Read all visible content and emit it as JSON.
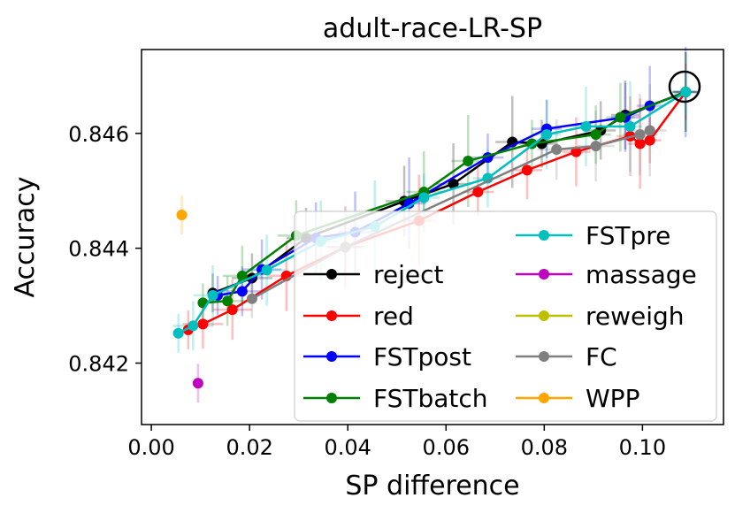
{
  "chart_data": {
    "type": "scatter",
    "title": "adult-race-LR-SP",
    "xlabel": "SP difference",
    "ylabel": "Accuracy",
    "xlim": [
      -0.002,
      0.1165
    ],
    "ylim": [
      0.84093,
      0.84746
    ],
    "xticks": [
      0.0,
      0.02,
      0.04,
      0.06,
      0.08,
      0.1
    ],
    "xtick_labels": [
      "0.00",
      "0.02",
      "0.04",
      "0.06",
      "0.08",
      "0.10"
    ],
    "yticks": [
      0.842,
      0.844,
      0.846
    ],
    "ytick_labels": [
      "0.842",
      "0.844",
      "0.846"
    ],
    "grid": false,
    "legend_position": "lower-right",
    "series": [
      {
        "name": "reject",
        "color": "#000000",
        "x": [
          0.0125,
          0.0205,
          0.0315,
          0.0515,
          0.0615,
          0.0735,
          0.0795,
          0.0915,
          0.0965,
          0.1088
        ],
        "y": [
          0.84322,
          0.84348,
          0.84418,
          0.84482,
          0.84512,
          0.84585,
          0.84582,
          0.84605,
          0.84632,
          0.84672
        ]
      },
      {
        "name": "red",
        "color": "#ff0000",
        "x": [
          0.0075,
          0.0105,
          0.0165,
          0.0275,
          0.0395,
          0.0545,
          0.0665,
          0.0765,
          0.0865,
          0.0975,
          0.0995,
          0.1015,
          0.1088
        ],
        "y": [
          0.84258,
          0.84268,
          0.84293,
          0.84352,
          0.84402,
          0.84448,
          0.84498,
          0.84536,
          0.84568,
          0.84595,
          0.84582,
          0.84588,
          0.84672
        ]
      },
      {
        "name": "FSTpost",
        "color": "#0000ff",
        "x": [
          0.0135,
          0.0185,
          0.0225,
          0.0335,
          0.0415,
          0.0525,
          0.0685,
          0.0805,
          0.0965,
          0.1015,
          0.1088
        ],
        "y": [
          0.84318,
          0.84325,
          0.84363,
          0.84418,
          0.84428,
          0.84478,
          0.84558,
          0.84608,
          0.84628,
          0.84648,
          0.84672
        ]
      },
      {
        "name": "FSTbatch",
        "color": "#008000",
        "x": [
          0.0105,
          0.0155,
          0.0185,
          0.0295,
          0.0555,
          0.0645,
          0.0775,
          0.0905,
          0.0955,
          0.1088
        ],
        "y": [
          0.84305,
          0.84308,
          0.84352,
          0.84422,
          0.84498,
          0.84552,
          0.84582,
          0.84598,
          0.84628,
          0.84672
        ]
      },
      {
        "name": "FSTpre",
        "color": "#00bfbf",
        "x": [
          0.0055,
          0.0085,
          0.0125,
          0.0235,
          0.0345,
          0.0455,
          0.0555,
          0.0685,
          0.0805,
          0.0885,
          0.0975,
          0.1088
        ],
        "y": [
          0.84252,
          0.84265,
          0.84318,
          0.84362,
          0.84412,
          0.84438,
          0.84488,
          0.84522,
          0.84598,
          0.84612,
          0.84612,
          0.84672
        ]
      },
      {
        "name": "massage",
        "color": "#bf00bf",
        "x": [
          0.0095
        ],
        "y": [
          0.84165
        ]
      },
      {
        "name": "reweigh",
        "color": "#bfbf00",
        "x": [],
        "y": []
      },
      {
        "name": "FC",
        "color": "#808080",
        "x": [
          0.0205,
          0.0395,
          0.0825,
          0.0905,
          0.0995,
          0.1015
        ],
        "y": [
          0.84312,
          0.84402,
          0.84572,
          0.84578,
          0.84598,
          0.84605
        ]
      },
      {
        "name": "WPP",
        "color": "#ffa500",
        "x": [
          0.0062
        ],
        "y": [
          0.84458
        ]
      }
    ]
  }
}
